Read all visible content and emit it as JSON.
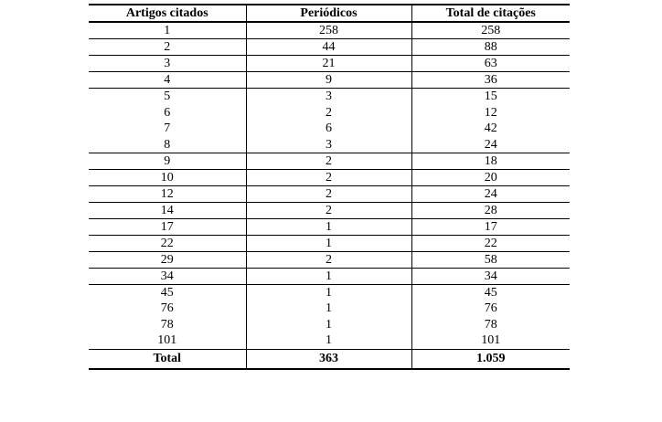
{
  "page": {
    "background_color": "#ffffff",
    "text_color": "#000000",
    "border_color": "#000000"
  },
  "table": {
    "headers": [
      "Artigos citados",
      "Periódicos",
      "Total de citações"
    ],
    "rows": [
      {
        "cells": [
          "1",
          "258",
          "258"
        ],
        "rule_below": true
      },
      {
        "cells": [
          "2",
          "44",
          "88"
        ],
        "rule_below": true
      },
      {
        "cells": [
          "3",
          "21",
          "63"
        ],
        "rule_below": true
      },
      {
        "cells": [
          "4",
          "9",
          "36"
        ],
        "rule_below": true
      },
      {
        "cells": [
          "5",
          "3",
          "15"
        ],
        "rule_below": false
      },
      {
        "cells": [
          "6",
          "2",
          "12"
        ],
        "rule_below": false
      },
      {
        "cells": [
          "7",
          "6",
          "42"
        ],
        "rule_below": false
      },
      {
        "cells": [
          "8",
          "3",
          "24"
        ],
        "rule_below": true
      },
      {
        "cells": [
          "9",
          "2",
          "18"
        ],
        "rule_below": true
      },
      {
        "cells": [
          "10",
          "2",
          "20"
        ],
        "rule_below": true
      },
      {
        "cells": [
          "12",
          "2",
          "24"
        ],
        "rule_below": true
      },
      {
        "cells": [
          "14",
          "2",
          "28"
        ],
        "rule_below": true
      },
      {
        "cells": [
          "17",
          "1",
          "17"
        ],
        "rule_below": true
      },
      {
        "cells": [
          "22",
          "1",
          "22"
        ],
        "rule_below": true
      },
      {
        "cells": [
          "29",
          "2",
          "58"
        ],
        "rule_below": true
      },
      {
        "cells": [
          "34",
          "1",
          "34"
        ],
        "rule_below": true
      },
      {
        "cells": [
          "45",
          "1",
          "45"
        ],
        "rule_below": false
      },
      {
        "cells": [
          "76",
          "1",
          "76"
        ],
        "rule_below": false
      },
      {
        "cells": [
          "78",
          "1",
          "78"
        ],
        "rule_below": false
      },
      {
        "cells": [
          "101",
          "1",
          "101"
        ],
        "rule_below": true
      }
    ],
    "footer": {
      "label": "Total",
      "periodicos_total": "363",
      "citacoes_total": "1.059"
    }
  }
}
